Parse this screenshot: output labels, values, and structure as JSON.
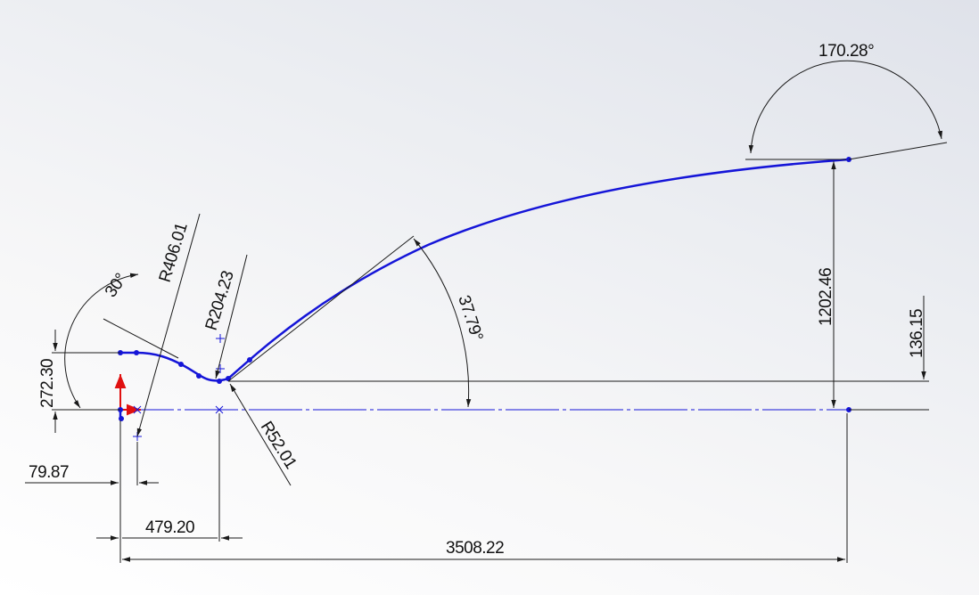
{
  "sketch": {
    "dimensions": {
      "angle_top": "170.28°",
      "height_main": "1202.46",
      "height_small": "136.15",
      "angle_arc": "37.79°",
      "angle_left": "30°",
      "radius_large": "R406.01",
      "radius_mid": "R204.23",
      "radius_small": "R52.01",
      "height_left": "272.30",
      "offset_left": "79.87",
      "length_mid": "479.20",
      "length_total": "3508.22"
    },
    "colors": {
      "geometry": "#1515d8",
      "dimension": "#1a1a1a",
      "origin_axis": "#e01010"
    }
  }
}
